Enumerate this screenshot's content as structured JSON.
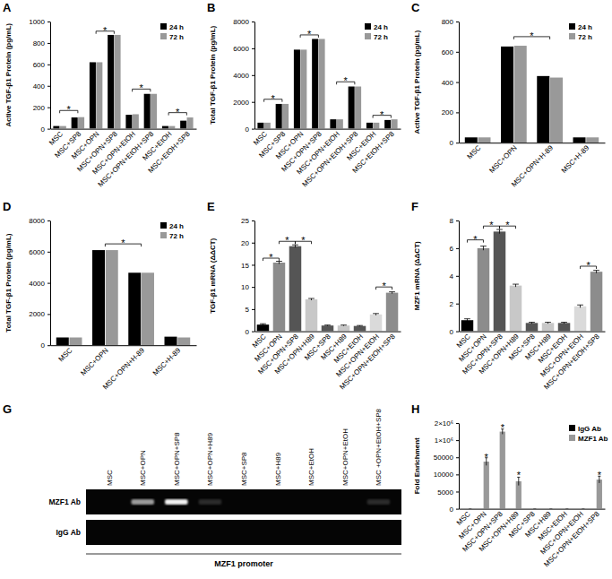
{
  "chart_data": [
    {
      "panel": "A",
      "type": "bar",
      "ylabel": "Active TGF-β1 Protein (pg/mL)",
      "categories": [
        "MSC",
        "MSC+SP8",
        "MSC+OPN",
        "MSC+OPN+SP8",
        "MSC+OPN+EtOH",
        "MSC+OPN+EtOH+SP8",
        "MSC+EtOH",
        "MSC+EtOH+SP8"
      ],
      "series": [
        {
          "name": "24 h",
          "color": "#000000",
          "values": [
            25,
            105,
            620,
            875,
            130,
            325,
            25,
            75
          ]
        },
        {
          "name": "72 h",
          "color": "#999999",
          "values": [
            25,
            108,
            620,
            875,
            135,
            325,
            25,
            105
          ]
        }
      ],
      "ylim": [
        0,
        1000
      ],
      "yticks": [
        0,
        200,
        400,
        600,
        800,
        1000
      ],
      "legend": "top-right",
      "annotations": [
        {
          "text": "*",
          "from": 0,
          "to": 1,
          "y": 170
        },
        {
          "text": "*",
          "from": 2,
          "to": 3,
          "y": 910
        },
        {
          "text": "*",
          "from": 4,
          "to": 5,
          "y": 370
        },
        {
          "text": "*",
          "from": 6,
          "to": 7,
          "y": 150
        }
      ]
    },
    {
      "panel": "B",
      "type": "bar",
      "ylabel": "Total TGF-β1 Protein (pg/mL)",
      "categories": [
        "MSC",
        "MSC+SP8",
        "MSC+OPN",
        "MSC+OPN+SP8",
        "MSC+OPN+EtOH",
        "MSC+OPN+EtOH+SP8",
        "MSC+EtOH",
        "MSC+EtOH+SP8"
      ],
      "series": [
        {
          "name": "24 h",
          "color": "#000000",
          "values": [
            450,
            1850,
            5900,
            6700,
            700,
            3150,
            450,
            650
          ]
        },
        {
          "name": "72 h",
          "color": "#999999",
          "values": [
            450,
            1850,
            5900,
            6700,
            700,
            3150,
            450,
            700
          ]
        }
      ],
      "ylim": [
        0,
        8000
      ],
      "yticks": [
        0,
        2000,
        4000,
        6000,
        8000
      ],
      "legend": "top-right",
      "annotations": [
        {
          "text": "*",
          "from": 0,
          "to": 1,
          "y": 2200
        },
        {
          "text": "*",
          "from": 2,
          "to": 3,
          "y": 7000
        },
        {
          "text": "*",
          "from": 4,
          "to": 5,
          "y": 3500
        },
        {
          "text": "*",
          "from": 6,
          "to": 7,
          "y": 1000
        }
      ]
    },
    {
      "panel": "C",
      "type": "bar",
      "ylabel": "Active TGF-β1 Protein (pg/mL)",
      "categories": [
        "MSC",
        "MSC+OPN",
        "MSC+OPN+H-89",
        "MSC+H-89"
      ],
      "series": [
        {
          "name": "24 h",
          "color": "#000000",
          "values": [
            35,
            635,
            440,
            35
          ]
        },
        {
          "name": "72 h",
          "color": "#999999",
          "values": [
            35,
            640,
            430,
            35
          ]
        }
      ],
      "ylim": [
        0,
        800
      ],
      "yticks": [
        0,
        200,
        400,
        600,
        800
      ],
      "legend": "top-right",
      "annotations": [
        {
          "text": "*",
          "from": 1,
          "to": 2,
          "y": 700
        }
      ]
    },
    {
      "panel": "D",
      "type": "bar",
      "ylabel": "Total TGF-β1 Protein (pg/mL)",
      "categories": [
        "MSC",
        "MSC+OPN",
        "MSC+OPN+H-89",
        "MSC+H-89"
      ],
      "series": [
        {
          "name": "24 h",
          "color": "#000000",
          "values": [
            500,
            6100,
            4650,
            550
          ]
        },
        {
          "name": "72 h",
          "color": "#999999",
          "values": [
            500,
            6100,
            4650,
            500
          ]
        }
      ],
      "ylim": [
        0,
        8000
      ],
      "yticks": [
        0,
        2000,
        4000,
        6000,
        8000
      ],
      "legend": "top-right",
      "annotations": [
        {
          "text": "*",
          "from": 1,
          "to": 2,
          "y": 6500
        }
      ]
    },
    {
      "panel": "E",
      "type": "bar",
      "ylabel": "TGF-β1 mRNA (ΔΔCT)",
      "categories": [
        "MSC",
        "MSC+OPN",
        "MSC+OPN+SP8",
        "MSC+OPN+H89",
        "MSC+SP8",
        "MSC+H89",
        "MSC+EtOH",
        "MSC+OPN+EtOH",
        "MSC+OPN+EtOH+SP8"
      ],
      "values": [
        1.5,
        15.5,
        19.2,
        7.2,
        1.3,
        1.3,
        1.2,
        3.8,
        8.7
      ],
      "errors": [
        0.2,
        0.3,
        0.3,
        0.2,
        0.1,
        0.1,
        0.1,
        0.2,
        0.2
      ],
      "colors": [
        "#000000",
        "#8c8c8c",
        "#555555",
        "#c8c8c8",
        "#555555",
        "#c8c8c8",
        "#555555",
        "#dadada",
        "#8c8c8c"
      ],
      "ylim": [
        0,
        25
      ],
      "yticks": [
        0,
        5,
        10,
        15,
        20,
        25
      ],
      "annotations": [
        {
          "text": "*",
          "from": 0,
          "to": 1,
          "y": 16.5
        },
        {
          "text": "*",
          "from": 1,
          "to": 2,
          "y": 20.3
        },
        {
          "text": "*",
          "from": 2,
          "to": 3,
          "y": 20.3
        },
        {
          "text": "*",
          "from": 7,
          "to": 8,
          "y": 10
        }
      ]
    },
    {
      "panel": "F",
      "type": "bar",
      "ylabel": "MZF1 mRNA (ΔΔCT)",
      "categories": [
        "MSC",
        "MSC+OPN",
        "MSC+OPN+SP8",
        "MSC+OPN+H89",
        "MSC+SP8",
        "MSC+H89",
        "MSC+EtOH",
        "MSC+OPN+EtOH",
        "MSC+OPN+EtOH+SP8"
      ],
      "values": [
        0.8,
        6.0,
        7.2,
        3.3,
        0.6,
        0.6,
        0.6,
        1.8,
        4.3
      ],
      "errors": [
        0.1,
        0.15,
        0.15,
        0.1,
        0.05,
        0.05,
        0.05,
        0.1,
        0.1
      ],
      "colors": [
        "#000000",
        "#8c8c8c",
        "#555555",
        "#c8c8c8",
        "#555555",
        "#c8c8c8",
        "#555555",
        "#dadada",
        "#8c8c8c"
      ],
      "ylim": [
        0,
        8
      ],
      "yticks": [
        0,
        2,
        4,
        6,
        8
      ],
      "annotations": [
        {
          "text": "*",
          "from": 0,
          "to": 1,
          "y": 6.6
        },
        {
          "text": "*",
          "from": 1,
          "to": 2,
          "y": 7.6
        },
        {
          "text": "*",
          "from": 2,
          "to": 3,
          "y": 7.6
        },
        {
          "text": "*",
          "from": 7,
          "to": 8,
          "y": 4.7
        }
      ]
    },
    {
      "panel": "G",
      "type": "gel",
      "categories": [
        "MSC",
        "MSC+OPN",
        "MSC+OPN+SP8",
        "MSC+OPN+H89",
        "MSC+SP8",
        "MSC+H89",
        "MSC+EtOH",
        "MSC+OPN+EtOH",
        "MSC +OPN+EtOH+SP8"
      ],
      "rows": [
        {
          "name": "MZF1 Ab",
          "intensity": [
            0,
            0.6,
            0.95,
            0.15,
            0,
            0,
            0,
            0,
            0.15
          ]
        },
        {
          "name": "IgG Ab",
          "intensity": [
            0,
            0,
            0,
            0,
            0,
            0,
            0,
            0,
            0
          ]
        }
      ],
      "xlabel": "MZF1 promoter"
    },
    {
      "panel": "H",
      "type": "bar",
      "ylabel": "Fold Enrichment",
      "categories": [
        "MSC",
        "MSC+OPN",
        "MSC+OPN+SP8",
        "MSC+OPN+H89",
        "MSC+SP8",
        "MSC+H89",
        "MSC+EtOH",
        "MSC+OPN+EtOH",
        "MSC+OPN+EtOH+SP8"
      ],
      "series": [
        {
          "name": "IgG Ab",
          "color": "#000000",
          "values": [
            1,
            1,
            1,
            1,
            1,
            1,
            1,
            1,
            1
          ]
        },
        {
          "name": "MZF1 Ab",
          "color": "#999999",
          "values": [
            1,
            40000,
            1500000,
            8000,
            1,
            1,
            1,
            1,
            8500
          ],
          "errors": [
            0,
            9000,
            150000,
            1200,
            0,
            0,
            0,
            0,
            1000
          ]
        }
      ],
      "ylim": [
        0,
        2000000
      ],
      "yticks": [
        0,
        5000,
        10000,
        50000,
        {
          "value": 1000000,
          "label": "1×10⁶"
        },
        {
          "value": 2000000,
          "label": "2×10⁶"
        }
      ],
      "legend": "top-right",
      "annotations": [
        {
          "text": "*",
          "from": 1,
          "to": 1,
          "series": 1,
          "y": 58000
        },
        {
          "text": "*",
          "from": 2,
          "to": 2,
          "series": 1,
          "y": 1720000
        },
        {
          "text": "*",
          "from": 3,
          "to": 3,
          "series": 1,
          "y": 9800
        },
        {
          "text": "*",
          "from": 8,
          "to": 8,
          "series": 1,
          "y": 9800
        }
      ]
    }
  ]
}
